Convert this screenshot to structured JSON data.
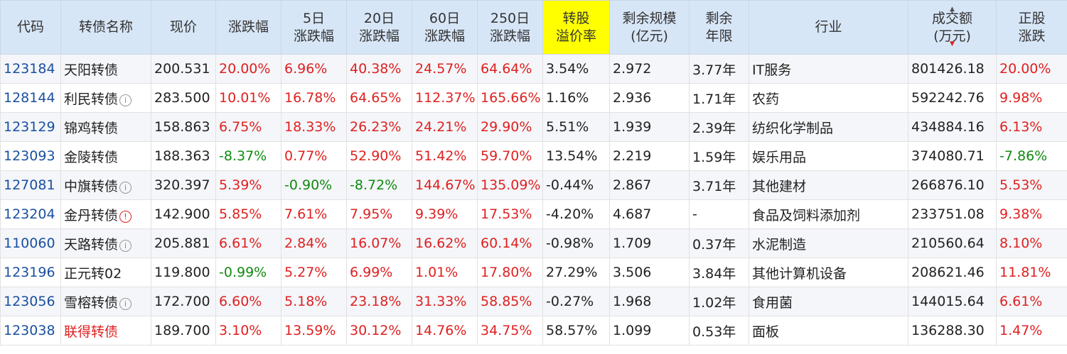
{
  "columns": [
    {
      "key": "code",
      "label": "代码"
    },
    {
      "key": "name",
      "label": "转债名称"
    },
    {
      "key": "price",
      "label": "现价"
    },
    {
      "key": "chg",
      "label": "涨跌幅"
    },
    {
      "key": "chg5",
      "label": "5日\n涨跌幅"
    },
    {
      "key": "chg20",
      "label": "20日\n涨跌幅"
    },
    {
      "key": "chg60",
      "label": "60日\n涨跌幅"
    },
    {
      "key": "chg250",
      "label": "250日\n涨跌幅"
    },
    {
      "key": "premium",
      "label": "转股\n溢价率"
    },
    {
      "key": "scale",
      "label": "剩余规模\n(亿元)"
    },
    {
      "key": "years",
      "label": "剩余\n年限"
    },
    {
      "key": "industry",
      "label": "行业"
    },
    {
      "key": "volume",
      "label": "成交额\n(万元)"
    },
    {
      "key": "stock_chg",
      "label": "正股\n涨跌"
    }
  ],
  "sort_indicator": {
    "up": "▲",
    "down": "▼"
  },
  "rows": [
    {
      "code": "123184",
      "name": "天阳转债",
      "icon": "",
      "price": "200.531",
      "chg": "20.00%",
      "chg5": "6.96%",
      "chg20": "40.38%",
      "chg60": "24.57%",
      "chg250": "64.64%",
      "premium": "3.54%",
      "scale": "2.972",
      "years": "3.77年",
      "industry": "IT服务",
      "volume": "801426.18",
      "stock_chg": "20.00%"
    },
    {
      "code": "128144",
      "name": "利民转债",
      "icon": "info",
      "price": "283.500",
      "chg": "10.01%",
      "chg5": "16.78%",
      "chg20": "64.65%",
      "chg60": "112.37%",
      "chg250": "165.66%",
      "premium": "1.16%",
      "scale": "2.936",
      "years": "1.71年",
      "industry": "农药",
      "volume": "592242.76",
      "stock_chg": "9.98%"
    },
    {
      "code": "123129",
      "name": "锦鸡转债",
      "icon": "",
      "price": "158.863",
      "chg": "6.75%",
      "chg5": "18.33%",
      "chg20": "26.23%",
      "chg60": "24.21%",
      "chg250": "29.90%",
      "premium": "5.51%",
      "scale": "1.939",
      "years": "2.39年",
      "industry": "纺织化学制品",
      "volume": "434884.16",
      "stock_chg": "6.13%"
    },
    {
      "code": "123093",
      "name": "金陵转债",
      "icon": "",
      "price": "188.363",
      "chg": "-8.37%",
      "chg5": "0.77%",
      "chg20": "52.90%",
      "chg60": "51.42%",
      "chg250": "59.70%",
      "premium": "13.54%",
      "scale": "2.219",
      "years": "1.59年",
      "industry": "娱乐用品",
      "volume": "374080.71",
      "stock_chg": "-7.86%"
    },
    {
      "code": "127081",
      "name": "中旗转债",
      "icon": "info",
      "price": "320.397",
      "chg": "5.39%",
      "chg5": "-0.90%",
      "chg20": "-8.72%",
      "chg60": "144.67%",
      "chg250": "135.09%",
      "premium": "-0.44%",
      "scale": "2.867",
      "years": "3.71年",
      "industry": "其他建材",
      "volume": "266876.10",
      "stock_chg": "5.53%"
    },
    {
      "code": "123204",
      "name": "金丹转债",
      "icon": "warn",
      "price": "142.900",
      "chg": "5.85%",
      "chg5": "7.61%",
      "chg20": "7.95%",
      "chg60": "9.39%",
      "chg250": "17.53%",
      "premium": "-4.20%",
      "scale": "4.687",
      "years": "-",
      "industry": "食品及饲料添加剂",
      "volume": "233751.08",
      "stock_chg": "9.38%"
    },
    {
      "code": "110060",
      "name": "天路转债",
      "icon": "info",
      "price": "205.881",
      "chg": "6.61%",
      "chg5": "2.84%",
      "chg20": "16.07%",
      "chg60": "16.62%",
      "chg250": "60.14%",
      "premium": "-0.98%",
      "scale": "1.709",
      "years": "0.37年",
      "industry": "水泥制造",
      "volume": "210560.64",
      "stock_chg": "8.10%"
    },
    {
      "code": "123196",
      "name": "正元转02",
      "icon": "",
      "price": "119.800",
      "chg": "-0.99%",
      "chg5": "5.27%",
      "chg20": "6.99%",
      "chg60": "1.01%",
      "chg250": "17.80%",
      "premium": "27.29%",
      "scale": "3.506",
      "years": "3.84年",
      "industry": "其他计算机设备",
      "volume": "208621.46",
      "stock_chg": "11.81%"
    },
    {
      "code": "123056",
      "name": "雪榕转债",
      "icon": "info",
      "price": "172.700",
      "chg": "6.60%",
      "chg5": "5.18%",
      "chg20": "23.18%",
      "chg60": "31.33%",
      "chg250": "58.85%",
      "premium": "-0.27%",
      "scale": "1.968",
      "years": "1.02年",
      "industry": "食用菌",
      "volume": "144015.64",
      "stock_chg": "6.61%"
    },
    {
      "code": "123038",
      "name": "联得转债",
      "icon": "",
      "name_red": true,
      "price": "189.700",
      "chg": "3.10%",
      "chg5": "13.59%",
      "chg20": "30.12%",
      "chg60": "14.76%",
      "chg250": "34.75%",
      "premium": "58.57%",
      "scale": "1.099",
      "years": "0.53年",
      "industry": "面板",
      "volume": "136288.30",
      "stock_chg": "1.47%"
    }
  ],
  "colors": {
    "header_bg": "#d7e6f7",
    "highlight": "#ffff00",
    "up": "#e02020",
    "down": "#108a10",
    "code": "#1a4fa0"
  }
}
